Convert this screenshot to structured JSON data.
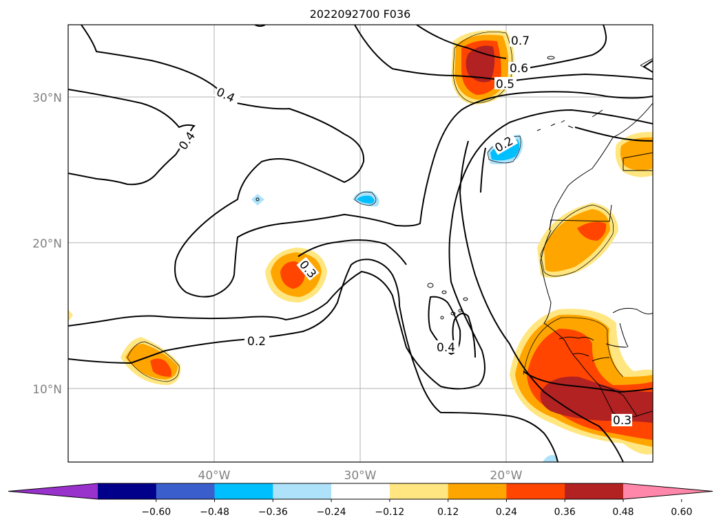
{
  "title": "2022092700 F036",
  "axes": {
    "latitude_labels": [
      "30°N",
      "20°N",
      "10°N"
    ],
    "longitude_labels": [
      "40°W",
      "30°W",
      "20°W"
    ]
  },
  "contour_labels": [
    "0.7",
    "0.6",
    "0.5",
    "0.4",
    "0.4",
    "0.4",
    "0.2",
    "0.2",
    "0.3",
    "0.3"
  ],
  "colorbar": {
    "tick_labels": [
      "−0.60",
      "−0.48",
      "−0.36",
      "−0.24",
      "−0.12",
      "0.12",
      "0.24",
      "0.36",
      "0.48",
      "0.60"
    ],
    "colors": [
      "#9932CC",
      "#00008B",
      "#3A5FCD",
      "#00BFFF",
      "#ADE2FA",
      "#FFFFFF",
      "#FFE680",
      "#FFA500",
      "#FF4500",
      "#B22222",
      "#FF88AA"
    ]
  }
}
